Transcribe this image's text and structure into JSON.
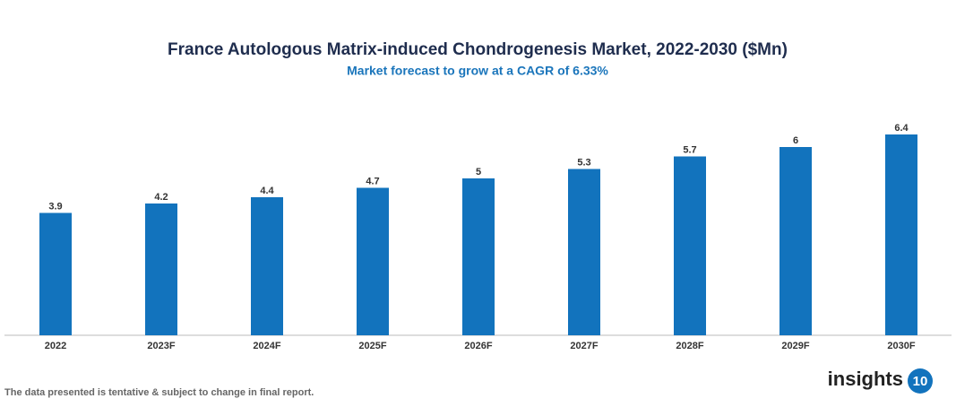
{
  "chart_data": {
    "type": "bar",
    "title": "France Autologous Matrix-induced Chondrogenesis Market, 2022-2030 ($Mn)",
    "subtitle": "Market forecast to grow at a CAGR of 6.33%",
    "categories": [
      "2022",
      "2023F",
      "2024F",
      "2025F",
      "2026F",
      "2027F",
      "2028F",
      "2029F",
      "2030F"
    ],
    "values": [
      3.9,
      4.2,
      4.4,
      4.7,
      5,
      5.3,
      5.7,
      6,
      6.4
    ],
    "color": "#1273bd"
  },
  "footer": {
    "note": "The data presented is tentative & subject to change in final report.",
    "brand": "insights",
    "brand_number": "10"
  }
}
